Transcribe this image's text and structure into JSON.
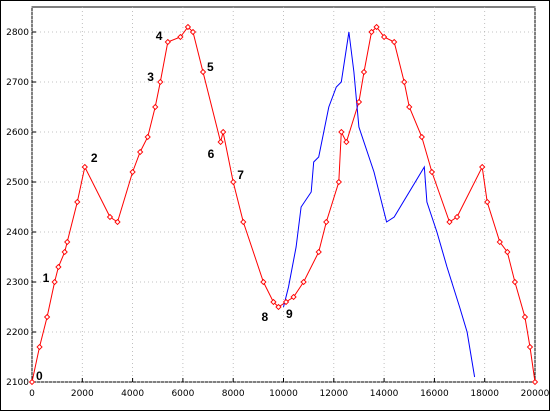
{
  "chart_data": {
    "type": "line",
    "title": "",
    "xlabel": "",
    "ylabel": "",
    "xlim": [
      0,
      20000
    ],
    "ylim": [
      2100,
      2850
    ],
    "xticks": [
      0,
      2000,
      4000,
      6000,
      8000,
      10000,
      12000,
      14000,
      16000,
      18000,
      20000
    ],
    "yticks": [
      2100,
      2200,
      2300,
      2400,
      2500,
      2600,
      2700,
      2800
    ],
    "grid": true,
    "legend": "none",
    "series": [
      {
        "color": "#ff0000",
        "marker": "diamond",
        "points": [
          [
            0,
            2100
          ],
          [
            300,
            2170
          ],
          [
            600,
            2230
          ],
          [
            900,
            2300
          ],
          [
            1050,
            2330
          ],
          [
            1300,
            2360
          ],
          [
            1400,
            2380
          ],
          [
            1800,
            2460
          ],
          [
            2100,
            2530
          ],
          [
            3100,
            2430
          ],
          [
            3400,
            2420
          ],
          [
            4000,
            2520
          ],
          [
            4300,
            2560
          ],
          [
            4600,
            2590
          ],
          [
            4900,
            2650
          ],
          [
            5100,
            2700
          ],
          [
            5400,
            2780
          ],
          [
            5900,
            2790
          ],
          [
            6200,
            2810
          ],
          [
            6400,
            2800
          ],
          [
            6800,
            2720
          ],
          [
            7500,
            2580
          ],
          [
            7600,
            2600
          ],
          [
            8000,
            2500
          ],
          [
            8400,
            2420
          ],
          [
            9200,
            2300
          ],
          [
            9600,
            2260
          ],
          [
            9800,
            2250
          ],
          [
            10100,
            2260
          ],
          [
            10400,
            2270
          ],
          [
            10800,
            2300
          ],
          [
            11400,
            2360
          ],
          [
            11700,
            2420
          ],
          [
            12200,
            2500
          ],
          [
            12300,
            2600
          ],
          [
            12500,
            2580
          ],
          [
            13000,
            2660
          ],
          [
            13200,
            2720
          ],
          [
            13500,
            2800
          ],
          [
            13700,
            2810
          ],
          [
            14000,
            2790
          ],
          [
            14400,
            2780
          ],
          [
            14800,
            2700
          ],
          [
            15000,
            2650
          ],
          [
            15500,
            2590
          ],
          [
            15900,
            2520
          ],
          [
            16600,
            2420
          ],
          [
            16900,
            2430
          ],
          [
            17900,
            2530
          ],
          [
            18100,
            2460
          ],
          [
            18600,
            2380
          ],
          [
            18900,
            2360
          ],
          [
            19200,
            2300
          ],
          [
            19600,
            2230
          ],
          [
            19800,
            2170
          ],
          [
            20000,
            2100
          ]
        ]
      },
      {
        "color": "#0000ff",
        "marker": "none",
        "points": [
          [
            10000,
            2250
          ],
          [
            10200,
            2290
          ],
          [
            10500,
            2370
          ],
          [
            10700,
            2450
          ],
          [
            11100,
            2480
          ],
          [
            11200,
            2540
          ],
          [
            11400,
            2550
          ],
          [
            11800,
            2650
          ],
          [
            12100,
            2690
          ],
          [
            12300,
            2700
          ],
          [
            12600,
            2800
          ],
          [
            12800,
            2720
          ],
          [
            13000,
            2610
          ],
          [
            13600,
            2520
          ],
          [
            14100,
            2420
          ],
          [
            14400,
            2430
          ],
          [
            15600,
            2530
          ],
          [
            15700,
            2460
          ],
          [
            16100,
            2400
          ],
          [
            16500,
            2330
          ],
          [
            17000,
            2250
          ],
          [
            17300,
            2200
          ],
          [
            17500,
            2140
          ],
          [
            17600,
            2110
          ]
        ]
      }
    ],
    "annotations": [
      {
        "label": "0",
        "x": 0,
        "y": 2100
      },
      {
        "label": "1",
        "x": 900,
        "y": 2300
      },
      {
        "label": "2",
        "x": 2100,
        "y": 2530
      },
      {
        "label": "3",
        "x": 5100,
        "y": 2700
      },
      {
        "label": "4",
        "x": 5400,
        "y": 2780
      },
      {
        "label": "5",
        "x": 6800,
        "y": 2720
      },
      {
        "label": "6",
        "x": 7500,
        "y": 2580
      },
      {
        "label": "7",
        "x": 8000,
        "y": 2500
      },
      {
        "label": "8",
        "x": 9800,
        "y": 2250
      },
      {
        "label": "9",
        "x": 10100,
        "y": 2260
      }
    ]
  }
}
